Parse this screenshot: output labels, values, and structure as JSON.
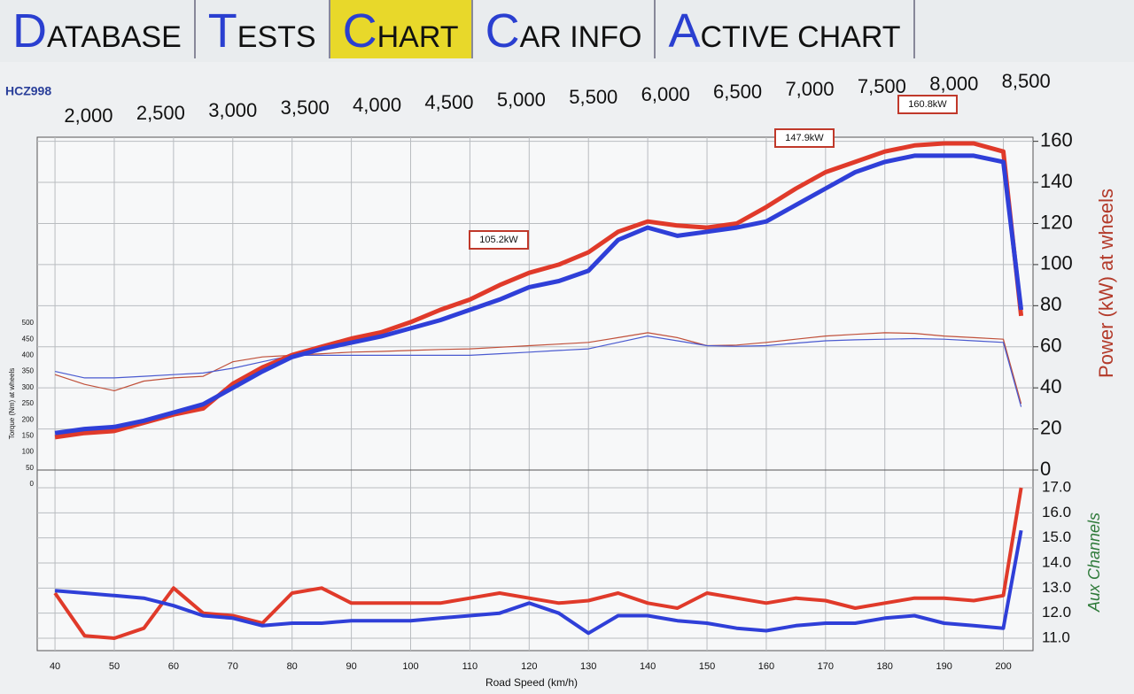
{
  "tabs": [
    "DATABASE",
    "TESTS",
    "CHART",
    "CAR INFO",
    "ACTIVE CHART"
  ],
  "chart_data": {
    "type": "line",
    "vehicle": "HCZ998",
    "x_label": "Road Speed (km/h)",
    "power_label": "Power (kW) at wheels",
    "aux_label": "Aux Channels",
    "torque_label": "Torque (Nm) at wheels",
    "x": [
      40,
      45,
      50,
      55,
      60,
      65,
      70,
      75,
      80,
      85,
      90,
      95,
      100,
      105,
      110,
      115,
      120,
      125,
      130,
      135,
      140,
      145,
      150,
      155,
      160,
      165,
      170,
      175,
      180,
      185,
      190,
      195,
      200,
      203
    ],
    "xlim": [
      37,
      205
    ],
    "xticks": [
      40,
      50,
      60,
      70,
      80,
      90,
      100,
      110,
      120,
      130,
      140,
      150,
      160,
      170,
      180,
      190,
      200
    ],
    "rpmlim": [
      1644,
      8548
    ],
    "rpmticks": [
      {
        "value": 2000,
        "label": "2,000"
      },
      {
        "value": 2500,
        "label": "2,500"
      },
      {
        "value": 3000,
        "label": "3,000"
      },
      {
        "value": 3500,
        "label": "3,500"
      },
      {
        "value": 4000,
        "label": "4,000"
      },
      {
        "value": 4500,
        "label": "4,500"
      },
      {
        "value": 5000,
        "label": "5,000"
      },
      {
        "value": 5500,
        "label": "5,500"
      },
      {
        "value": 6000,
        "label": "6,000"
      },
      {
        "value": 6500,
        "label": "6,500"
      },
      {
        "value": 7000,
        "label": "7,000"
      },
      {
        "value": 7500,
        "label": "7,500"
      },
      {
        "value": 8000,
        "label": "8,000"
      },
      {
        "value": 8500,
        "label": "8,500"
      }
    ],
    "ylim": [
      0,
      162
    ],
    "yticks": [
      0,
      20,
      40,
      60,
      80,
      100,
      120,
      140,
      160
    ],
    "torquelim": [
      0,
      500
    ],
    "torqueticks": [
      0,
      50,
      100,
      150,
      200,
      250,
      300,
      350,
      400,
      450,
      500
    ],
    "auxlim": [
      11,
      17
    ],
    "auxticks": [
      {
        "value": 11,
        "label": "11.0"
      },
      {
        "value": 12,
        "label": "12.0"
      },
      {
        "value": 13,
        "label": "13.0"
      },
      {
        "value": 14,
        "label": "14.0"
      },
      {
        "value": 15,
        "label": "15.0"
      },
      {
        "value": 16,
        "label": "16.0"
      },
      {
        "value": 17,
        "label": "17.0"
      }
    ],
    "grid": true,
    "power_series": [
      {
        "color": "#e03a2a",
        "values": [
          16,
          18,
          19,
          23,
          27,
          30,
          42,
          50,
          56,
          60,
          64,
          67,
          72,
          78,
          83,
          90,
          96,
          100,
          106,
          116,
          121,
          119,
          118,
          120,
          128,
          137,
          145,
          150,
          155,
          158,
          159,
          159,
          155,
          75
        ]
      },
      {
        "color": "#2f3fd8",
        "values": [
          18,
          20,
          21,
          24,
          28,
          32,
          40,
          48,
          55,
          59,
          62,
          65,
          69,
          73,
          78,
          83,
          89,
          92,
          97,
          112,
          118,
          114,
          116,
          118,
          121,
          129,
          137,
          145,
          150,
          153,
          153,
          153,
          150,
          78
        ]
      }
    ],
    "torque_series": [
      {
        "color": "#c0503a",
        "values": [
          340,
          310,
          290,
          320,
          330,
          335,
          380,
          395,
          400,
          405,
          410,
          412,
          415,
          418,
          420,
          425,
          430,
          435,
          440,
          455,
          470,
          455,
          430,
          432,
          440,
          450,
          460,
          465,
          470,
          468,
          460,
          455,
          450,
          250
        ]
      },
      {
        "color": "#4a5ad0",
        "values": [
          350,
          330,
          330,
          335,
          340,
          345,
          360,
          380,
          400,
          400,
          400,
          400,
          400,
          400,
          400,
          405,
          410,
          415,
          420,
          440,
          460,
          445,
          430,
          428,
          430,
          438,
          445,
          448,
          450,
          452,
          450,
          445,
          440,
          240
        ]
      }
    ],
    "aux_series": [
      {
        "color": "#e03a2a",
        "values": [
          12.8,
          11.1,
          11.0,
          11.4,
          13.0,
          12.0,
          11.9,
          11.6,
          12.8,
          13.0,
          12.4,
          12.4,
          12.4,
          12.4,
          12.6,
          12.8,
          12.6,
          12.4,
          12.5,
          12.8,
          12.4,
          12.2,
          12.8,
          12.6,
          12.4,
          12.6,
          12.5,
          12.2,
          12.4,
          12.6,
          12.6,
          12.5,
          12.7,
          17.0
        ]
      },
      {
        "color": "#2f3fd8",
        "values": [
          12.9,
          12.8,
          12.7,
          12.6,
          12.3,
          11.9,
          11.8,
          11.5,
          11.6,
          11.6,
          11.7,
          11.7,
          11.7,
          11.8,
          11.9,
          12.0,
          12.4,
          12.0,
          11.2,
          11.9,
          11.9,
          11.7,
          11.6,
          11.4,
          11.3,
          11.5,
          11.6,
          11.6,
          11.8,
          11.9,
          11.6,
          11.5,
          11.4,
          15.3
        ]
      }
    ],
    "annotations": [
      "105.2kW",
      "147.9kW",
      "160.8kW"
    ]
  }
}
